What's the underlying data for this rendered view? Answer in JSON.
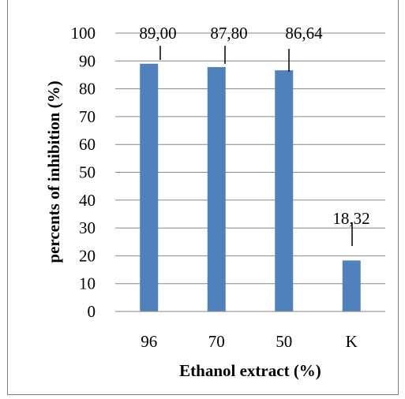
{
  "chart_data": {
    "type": "bar",
    "categories": [
      "96",
      "70",
      "50",
      "K"
    ],
    "values": [
      89.0,
      87.8,
      86.64,
      18.32
    ],
    "data_labels": [
      "89,00",
      "87,80",
      "86,64",
      "18,32"
    ],
    "xlabel": "Ethanol extract (%)",
    "ylabel": "percents of inhibition  (%)",
    "ylim": [
      0,
      100
    ],
    "yticks": [
      "0",
      "10",
      "20",
      "30",
      "40",
      "50",
      "60",
      "70",
      "80",
      "90",
      "100"
    ],
    "grid": true,
    "bar_color": "#4f81bd",
    "legend": "none"
  }
}
